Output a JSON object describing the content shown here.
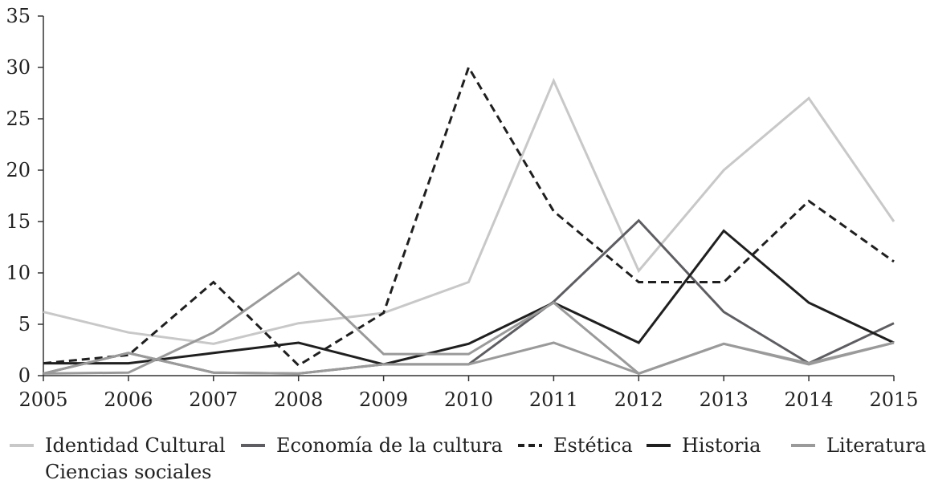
{
  "chart_data": {
    "type": "line",
    "x": [
      2005,
      2006,
      2007,
      2008,
      2009,
      2010,
      2011,
      2012,
      2013,
      2014,
      2015
    ],
    "ylim": [
      0,
      35
    ],
    "yticks": [
      0,
      5,
      10,
      15,
      20,
      25,
      30,
      35
    ],
    "grid": false,
    "legend_position": "bottom",
    "series": [
      {
        "name": "Identidad Cultural",
        "color": "#c8c8c8",
        "dash": "solid",
        "values": [
          6.2,
          4.2,
          3.1,
          5.1,
          6.1,
          9.1,
          28.7,
          10.2,
          20.0,
          27.0,
          15.0
        ]
      },
      {
        "name": "Economía de la cultura",
        "color": "#5e5e62",
        "dash": "solid",
        "values": [
          0.2,
          2.2,
          0.3,
          0.2,
          1.1,
          1.1,
          7.2,
          15.1,
          6.2,
          1.2,
          5.1
        ]
      },
      {
        "name": "Estética",
        "color": "#1f1f1f",
        "dash": "dashed",
        "values": [
          1.2,
          2.0,
          9.1,
          1.0,
          6.1,
          30.0,
          16.0,
          9.1,
          9.1,
          17.0,
          11.1
        ]
      },
      {
        "name": "Historia",
        "color": "#1f1f1f",
        "dash": "solid",
        "values": [
          1.2,
          1.2,
          2.2,
          3.2,
          1.1,
          3.1,
          7.1,
          3.2,
          14.1,
          7.1,
          3.2
        ]
      },
      {
        "name": "Literatura",
        "color": "#9a9a9a",
        "dash": "solid",
        "values": [
          0.2,
          0.3,
          4.2,
          10.0,
          2.1,
          2.1,
          7.1,
          0.2,
          3.1,
          1.1,
          3.2
        ]
      },
      {
        "name": "Ciencias sociales",
        "color": "#9a9a9a",
        "dash": "solid",
        "values": [
          0.2,
          2.2,
          0.3,
          0.2,
          1.1,
          1.1,
          3.2,
          0.2,
          3.1,
          1.2,
          3.2
        ]
      }
    ]
  }
}
